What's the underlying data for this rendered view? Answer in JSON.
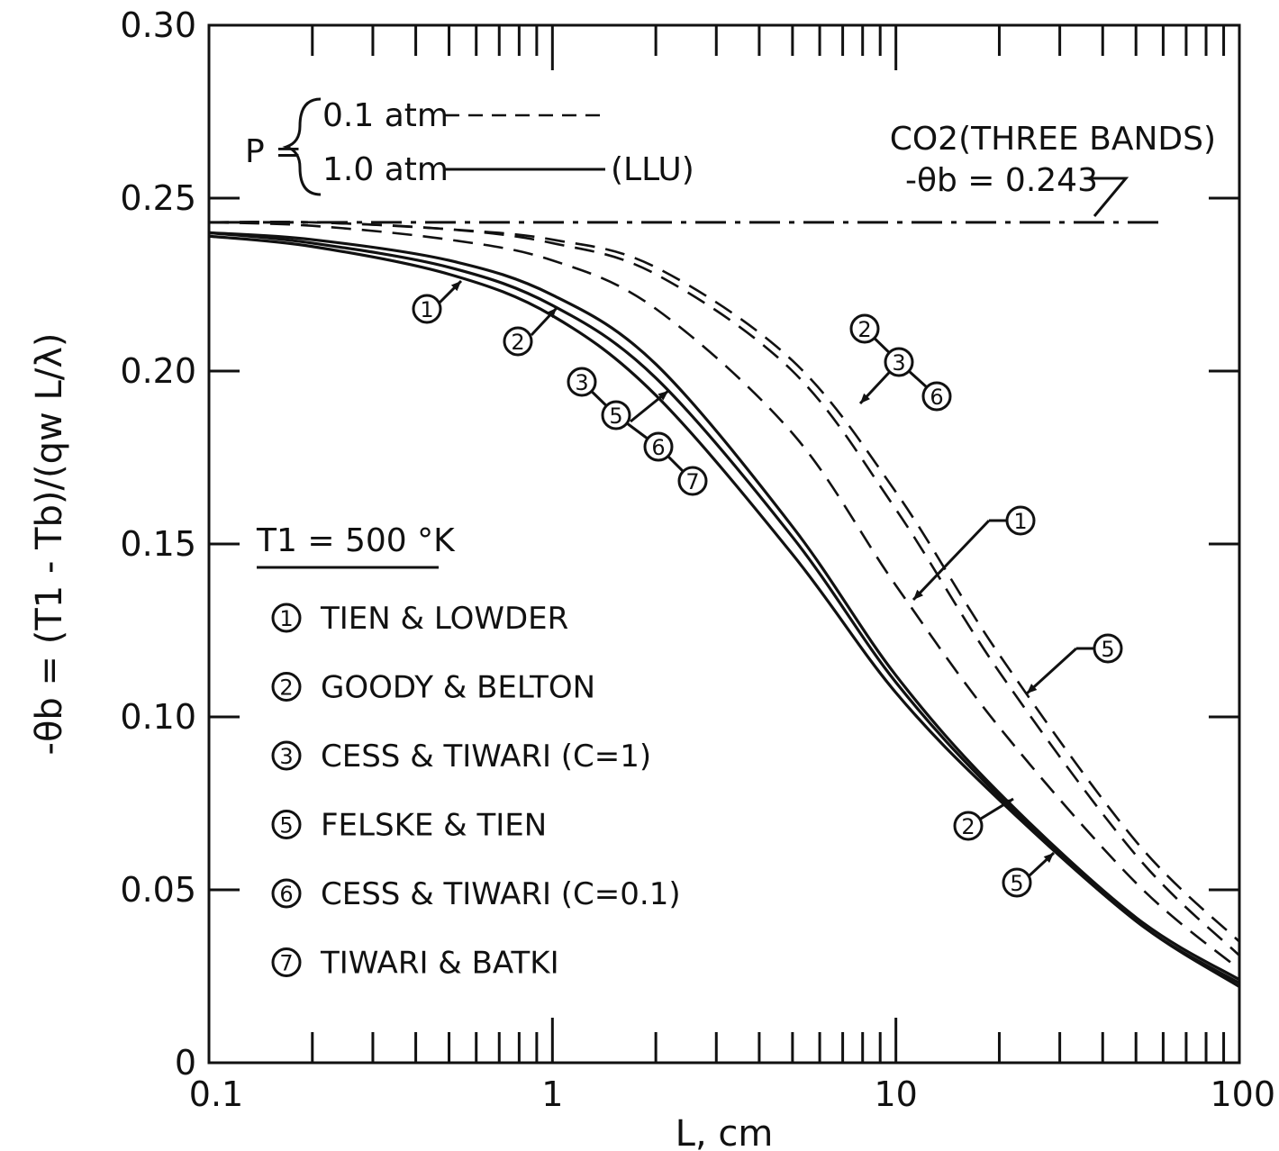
{
  "chart_data": {
    "type": "line",
    "x_scale": "log",
    "xlim": [
      0.1,
      100
    ],
    "ylim": [
      0,
      0.3
    ],
    "xlabel": "L, cm",
    "ylabel": "-θb = (T1 - Tb)/(qw L/λ)",
    "x_ticks": [
      {
        "value": 0.1,
        "label": "0.1"
      },
      {
        "value": 1,
        "label": "1"
      },
      {
        "value": 10,
        "label": "10"
      },
      {
        "value": 100,
        "label": "100"
      }
    ],
    "y_ticks": [
      {
        "value": 0,
        "label": "0"
      },
      {
        "value": 0.05,
        "label": "0.05"
      },
      {
        "value": 0.1,
        "label": "0.10"
      },
      {
        "value": 0.15,
        "label": "0.15"
      },
      {
        "value": 0.2,
        "label": "0.20"
      },
      {
        "value": 0.25,
        "label": "0.25"
      },
      {
        "value": 0.3,
        "label": "0.30"
      }
    ],
    "grid": false,
    "asymptote": {
      "value": 0.243,
      "label": "-θb = 0.243",
      "style": "dash-dot"
    },
    "gas_label": "CO2(THREE BANDS)",
    "pressure_legend": {
      "prefix": "P =",
      "entries": [
        {
          "label": "0.1 atm",
          "style": "dashed"
        },
        {
          "label": "1.0 atm",
          "style": "solid",
          "suffix": "(LLU)"
        }
      ]
    },
    "temperature_label": "T1 = 500 °K",
    "models": [
      {
        "num": "1",
        "name": "TIEN & LOWDER"
      },
      {
        "num": "2",
        "name": "GOODY & BELTON"
      },
      {
        "num": "3",
        "name": "CESS & TIWARI (C=1)"
      },
      {
        "num": "5",
        "name": "FELSKE & TIEN"
      },
      {
        "num": "6",
        "name": "CESS & TIWARI (C=0.1)"
      },
      {
        "num": "7",
        "name": "TIWARI & BATKI"
      }
    ],
    "x": [
      0.1,
      0.2,
      0.5,
      1,
      2,
      5,
      10,
      20,
      50,
      100
    ],
    "series": [
      {
        "models": "1",
        "pressure": "1.0 atm",
        "style": "solid",
        "values": [
          0.24,
          0.238,
          0.232,
          0.222,
          0.202,
          0.155,
          0.112,
          0.078,
          0.042,
          0.024
        ]
      },
      {
        "models": "2",
        "pressure": "1.0 atm",
        "style": "solid",
        "values": [
          0.24,
          0.237,
          0.23,
          0.219,
          0.198,
          0.152,
          0.11,
          0.077,
          0.041,
          0.023
        ]
      },
      {
        "models": "3, 5, 6, 7",
        "pressure": "1.0 atm",
        "style": "solid",
        "values": [
          0.239,
          0.236,
          0.228,
          0.216,
          0.193,
          0.147,
          0.107,
          0.076,
          0.041,
          0.022
        ]
      },
      {
        "models": "1",
        "pressure": "0.1 atm",
        "style": "dashed",
        "values": [
          0.243,
          0.242,
          0.238,
          0.232,
          0.218,
          0.182,
          0.138,
          0.097,
          0.052,
          0.027
        ]
      },
      {
        "models": "5",
        "pressure": "0.1 atm",
        "style": "dashed",
        "values": [
          0.243,
          0.243,
          0.241,
          0.237,
          0.228,
          0.2,
          0.16,
          0.113,
          0.06,
          0.031
        ]
      },
      {
        "models": "2, 3, 6",
        "pressure": "0.1 atm",
        "style": "dashed",
        "values": [
          0.243,
          0.243,
          0.241,
          0.238,
          0.23,
          0.203,
          0.165,
          0.118,
          0.064,
          0.035
        ]
      }
    ],
    "annotations": [
      {
        "text": "1",
        "target": "1.0 atm curve"
      },
      {
        "text": "2",
        "target": "1.0 atm curve"
      },
      {
        "text": "3-5-6-7",
        "target": "1.0 atm curve"
      },
      {
        "text": "2-3-6",
        "target": "0.1 atm curve"
      },
      {
        "text": "1",
        "target": "0.1 atm curve"
      },
      {
        "text": "5",
        "target": "0.1 atm curve"
      },
      {
        "text": "2",
        "target": "1.0 atm curve (tail)"
      },
      {
        "text": "5",
        "target": "1.0 atm curve (tail)"
      }
    ]
  }
}
